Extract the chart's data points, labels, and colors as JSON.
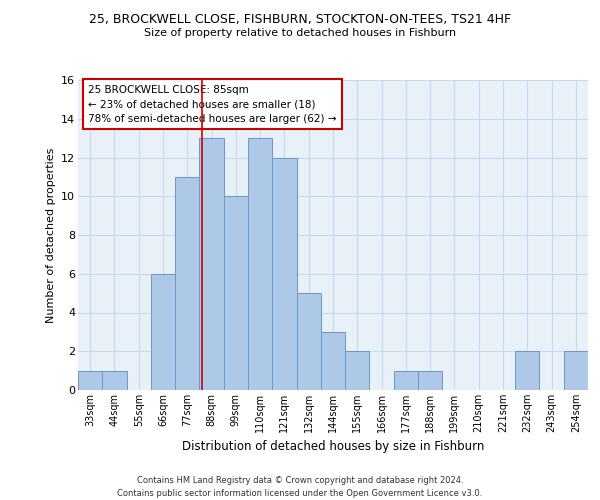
{
  "title_line1": "25, BROCKWELL CLOSE, FISHBURN, STOCKTON-ON-TEES, TS21 4HF",
  "title_line2": "Size of property relative to detached houses in Fishburn",
  "xlabel": "Distribution of detached houses by size in Fishburn",
  "ylabel": "Number of detached properties",
  "categories": [
    "33sqm",
    "44sqm",
    "55sqm",
    "66sqm",
    "77sqm",
    "88sqm",
    "99sqm",
    "110sqm",
    "121sqm",
    "132sqm",
    "144sqm",
    "155sqm",
    "166sqm",
    "177sqm",
    "188sqm",
    "199sqm",
    "210sqm",
    "221sqm",
    "232sqm",
    "243sqm",
    "254sqm"
  ],
  "values": [
    1,
    1,
    0,
    6,
    11,
    13,
    10,
    13,
    12,
    5,
    3,
    2,
    0,
    1,
    1,
    0,
    0,
    0,
    2,
    0,
    2
  ],
  "bar_color": "#aec9e8",
  "bar_edge_color": "#6699cc",
  "grid_color": "#c8daea",
  "annotation_box_text_line1": "25 BROCKWELL CLOSE: 85sqm",
  "annotation_box_text_line2": "← 23% of detached houses are smaller (18)",
  "annotation_box_text_line3": "78% of semi-detached houses are larger (62) →",
  "annotation_box_color": "#ffffff",
  "annotation_box_edge_color": "#cc0000",
  "reference_line_x": 4.62,
  "ylim": [
    0,
    16
  ],
  "yticks": [
    0,
    2,
    4,
    6,
    8,
    10,
    12,
    14,
    16
  ],
  "footer_line1": "Contains HM Land Registry data © Crown copyright and database right 2024.",
  "footer_line2": "Contains public sector information licensed under the Open Government Licence v3.0.",
  "bg_color": "#e8f0f8"
}
